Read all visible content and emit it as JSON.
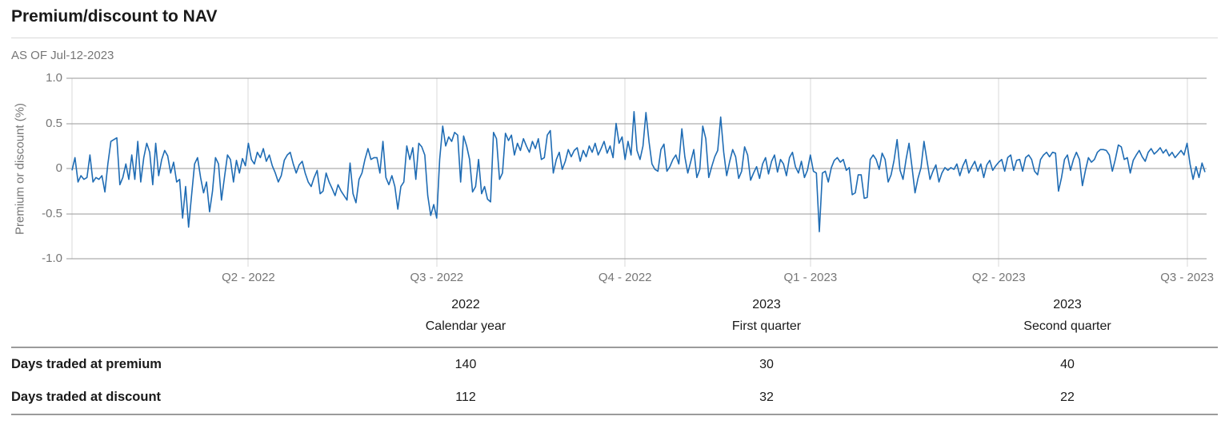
{
  "header": {
    "title": "Premium/discount to NAV",
    "as_of": "AS OF Jul-12-2023"
  },
  "chart_data": [
    {
      "type": "line",
      "title": "Premium/discount to NAV",
      "as_of_label": "AS OF Jul-12-2023",
      "ylabel": "Premium or discount (%)",
      "xlabel": "",
      "ylim": [
        -1.0,
        1.0
      ],
      "yticks": [
        1.0,
        0.5,
        0,
        -0.5,
        -1.0
      ],
      "ytick_labels": [
        "1.0",
        "0.5",
        "0",
        "-0.5",
        "-1.0"
      ],
      "xtick_labels": [
        "Q2 - 2022",
        "Q3 - 2022",
        "Q4 - 2022",
        "Q1 - 2023",
        "Q2 - 2023",
        "Q3 - 2023"
      ],
      "xtick_days": [
        59,
        122,
        185,
        247,
        310,
        373
      ],
      "grid": true,
      "legend_position": "none",
      "line_color": "#1f6cb4",
      "series": [
        {
          "name": "Daily premium/discount (%)",
          "values": [
            -0.02,
            0.12,
            -0.15,
            -0.08,
            -0.12,
            -0.1,
            0.15,
            -0.15,
            -0.1,
            -0.12,
            -0.08,
            -0.26,
            0.05,
            0.3,
            0.32,
            0.34,
            -0.18,
            -0.1,
            0.05,
            -0.12,
            0.15,
            -0.12,
            0.3,
            -0.15,
            0.12,
            0.28,
            0.18,
            -0.18,
            0.28,
            -0.08,
            0.1,
            0.2,
            0.14,
            -0.05,
            0.07,
            -0.15,
            -0.12,
            -0.55,
            -0.2,
            -0.65,
            -0.3,
            0.05,
            0.12,
            -0.1,
            -0.27,
            -0.15,
            -0.48,
            -0.25,
            0.12,
            0.05,
            -0.35,
            -0.1,
            0.15,
            0.1,
            -0.15,
            0.09,
            -0.05,
            0.11,
            0.03,
            0.28,
            0.1,
            0.05,
            0.18,
            0.12,
            0.22,
            0.08,
            0.15,
            0.03,
            -0.05,
            -0.15,
            -0.08,
            0.09,
            0.15,
            0.18,
            0.05,
            -0.05,
            0.04,
            0.08,
            -0.05,
            -0.15,
            -0.2,
            -0.1,
            -0.02,
            -0.28,
            -0.25,
            -0.05,
            -0.15,
            -0.22,
            -0.3,
            -0.18,
            -0.25,
            -0.3,
            -0.35,
            0.06,
            -0.28,
            -0.38,
            -0.12,
            -0.05,
            0.1,
            0.22,
            0.1,
            0.12,
            0.12,
            -0.05,
            0.3,
            -0.1,
            -0.18,
            -0.08,
            -0.2,
            -0.45,
            -0.2,
            -0.15,
            0.25,
            0.1,
            0.23,
            -0.12,
            0.28,
            0.24,
            0.15,
            -0.3,
            -0.52,
            -0.4,
            -0.55,
            0.1,
            0.47,
            0.25,
            0.35,
            0.3,
            0.4,
            0.37,
            -0.15,
            0.36,
            0.25,
            0.1,
            -0.26,
            -0.2,
            0.1,
            -0.28,
            -0.2,
            -0.34,
            -0.37,
            0.4,
            0.33,
            -0.12,
            -0.05,
            0.39,
            0.31,
            0.37,
            0.15,
            0.28,
            0.2,
            0.33,
            0.25,
            0.18,
            0.3,
            0.22,
            0.33,
            0.1,
            0.12,
            0.37,
            0.42,
            -0.05,
            0.1,
            0.18,
            -0.01,
            0.08,
            0.21,
            0.13,
            0.2,
            0.23,
            0.08,
            0.2,
            0.13,
            0.25,
            0.18,
            0.28,
            0.15,
            0.22,
            0.3,
            0.17,
            0.25,
            0.12,
            0.5,
            0.28,
            0.35,
            0.1,
            0.3,
            0.15,
            0.63,
            0.2,
            0.1,
            0.25,
            0.62,
            0.3,
            0.05,
            -0.01,
            -0.03,
            0.21,
            0.27,
            -0.03,
            0.02,
            0.1,
            0.15,
            0.05,
            0.44,
            0.13,
            -0.05,
            0.08,
            0.21,
            -0.1,
            -0.01,
            0.47,
            0.33,
            -0.1,
            0.02,
            0.13,
            0.2,
            0.57,
            0.18,
            -0.08,
            0.08,
            0.21,
            0.13,
            -0.11,
            -0.03,
            0.24,
            0.15,
            -0.13,
            -0.05,
            0.02,
            -0.11,
            0.05,
            0.12,
            -0.06,
            0.08,
            0.15,
            -0.04,
            0.1,
            0.05,
            -0.08,
            0.12,
            0.18,
            0.02,
            -0.05,
            0.08,
            -0.1,
            -0.02,
            0.15,
            -0.03,
            -0.05,
            -0.7,
            -0.05,
            -0.03,
            -0.15,
            0.01,
            0.09,
            0.12,
            0.07,
            0.1,
            -0.02,
            0.01,
            -0.29,
            -0.27,
            -0.07,
            -0.07,
            -0.33,
            -0.32,
            0.1,
            0.15,
            0.1,
            -0.01,
            0.17,
            0.1,
            -0.15,
            -0.07,
            0.09,
            0.32,
            -0.02,
            -0.12,
            0.1,
            0.28,
            0.01,
            -0.27,
            -0.11,
            0.01,
            0.3,
            0.09,
            -0.12,
            -0.03,
            0.04,
            -0.15,
            -0.05,
            0.01,
            -0.02,
            0.01,
            -0.01,
            0.05,
            -0.08,
            0.03,
            0.1,
            -0.05,
            0.02,
            0.08,
            -0.03,
            0.05,
            -0.1,
            0.04,
            0.09,
            -0.02,
            0.03,
            0.07,
            0.1,
            -0.03,
            0.12,
            0.15,
            -0.02,
            0.09,
            0.1,
            -0.03,
            0.12,
            0.15,
            0.1,
            -0.03,
            -0.07,
            0.1,
            0.15,
            0.18,
            0.13,
            0.18,
            0.17,
            -0.25,
            -0.1,
            0.1,
            0.15,
            -0.02,
            0.1,
            0.18,
            0.1,
            -0.19,
            -0.02,
            0.12,
            0.07,
            0.1,
            0.18,
            0.21,
            0.21,
            0.2,
            0.15,
            -0.03,
            0.1,
            0.26,
            0.24,
            0.1,
            0.12,
            -0.05,
            0.09,
            0.15,
            0.2,
            0.13,
            0.08,
            0.18,
            0.22,
            0.16,
            0.19,
            0.23,
            0.17,
            0.21,
            0.14,
            0.18,
            0.12,
            0.16,
            0.2,
            0.15,
            0.28,
            0.05,
            -0.12,
            0.02,
            -0.1,
            0.06,
            -0.04
          ]
        }
      ]
    },
    {
      "type": "table",
      "columns": [
        {
          "line1": "2022",
          "line2": "Calendar year"
        },
        {
          "line1": "2023",
          "line2": "First quarter"
        },
        {
          "line1": "2023",
          "line2": "Second quarter"
        }
      ],
      "rows": [
        {
          "label": "Days traded at premium",
          "values": [
            "140",
            "30",
            "40"
          ]
        },
        {
          "label": "Days traded at discount",
          "values": [
            "112",
            "32",
            "22"
          ]
        }
      ]
    }
  ],
  "colors": {
    "line": "#1f6cb4",
    "h_grid": "#9a9a9a",
    "v_grid": "#d9d9d9",
    "axis_text": "#767676",
    "title_text": "#1a1a1a",
    "table_border": "#9b9b9b"
  }
}
